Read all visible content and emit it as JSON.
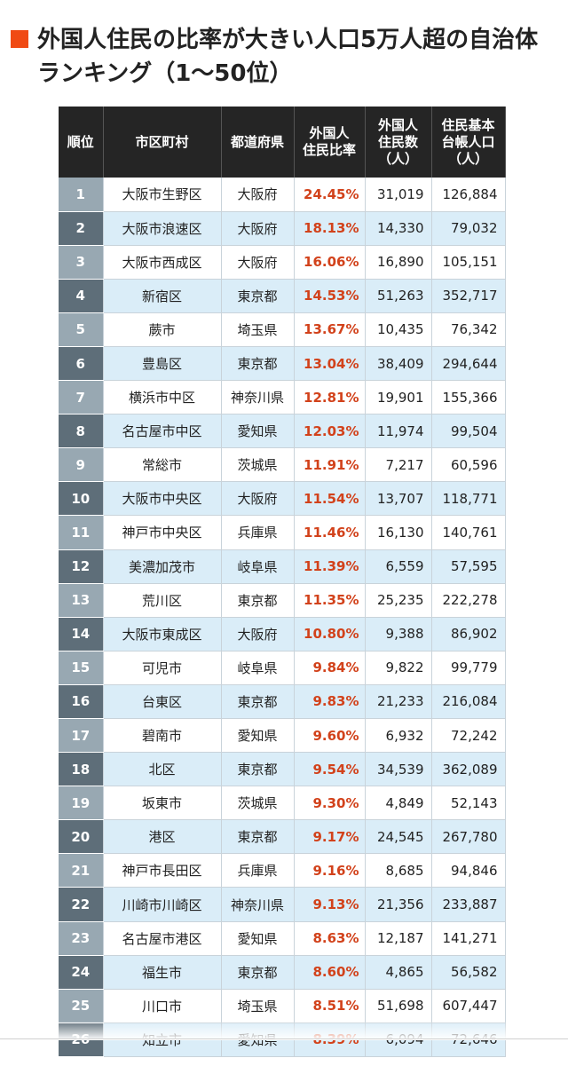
{
  "title": "外国人住民の比率が大きい人口5万人超の自治体ランキング（1〜50位）",
  "colors": {
    "accent": "#f04a14",
    "header_bg": "#252525",
    "ratio_text": "#d2421b",
    "row_stripe": "#daedf8"
  },
  "table": {
    "headers": [
      "順位",
      "市区町村",
      "都道府県",
      "外国人\n住民比率",
      "外国人\n住民数\n（人）",
      "住民基本\n台帳人口\n（人）"
    ],
    "rows": [
      {
        "rank": "1",
        "city": "大阪市生野区",
        "pref": "大阪府",
        "ratio": "24.45%",
        "foreign": "31,019",
        "total": "126,884"
      },
      {
        "rank": "2",
        "city": "大阪市浪速区",
        "pref": "大阪府",
        "ratio": "18.13%",
        "foreign": "14,330",
        "total": "79,032"
      },
      {
        "rank": "3",
        "city": "大阪市西成区",
        "pref": "大阪府",
        "ratio": "16.06%",
        "foreign": "16,890",
        "total": "105,151"
      },
      {
        "rank": "4",
        "city": "新宿区",
        "pref": "東京都",
        "ratio": "14.53%",
        "foreign": "51,263",
        "total": "352,717"
      },
      {
        "rank": "5",
        "city": "蕨市",
        "pref": "埼玉県",
        "ratio": "13.67%",
        "foreign": "10,435",
        "total": "76,342"
      },
      {
        "rank": "6",
        "city": "豊島区",
        "pref": "東京都",
        "ratio": "13.04%",
        "foreign": "38,409",
        "total": "294,644"
      },
      {
        "rank": "7",
        "city": "横浜市中区",
        "pref": "神奈川県",
        "ratio": "12.81%",
        "foreign": "19,901",
        "total": "155,366"
      },
      {
        "rank": "8",
        "city": "名古屋市中区",
        "pref": "愛知県",
        "ratio": "12.03%",
        "foreign": "11,974",
        "total": "99,504"
      },
      {
        "rank": "9",
        "city": "常総市",
        "pref": "茨城県",
        "ratio": "11.91%",
        "foreign": "7,217",
        "total": "60,596"
      },
      {
        "rank": "10",
        "city": "大阪市中央区",
        "pref": "大阪府",
        "ratio": "11.54%",
        "foreign": "13,707",
        "total": "118,771"
      },
      {
        "rank": "11",
        "city": "神戸市中央区",
        "pref": "兵庫県",
        "ratio": "11.46%",
        "foreign": "16,130",
        "total": "140,761"
      },
      {
        "rank": "12",
        "city": "美濃加茂市",
        "pref": "岐阜県",
        "ratio": "11.39%",
        "foreign": "6,559",
        "total": "57,595"
      },
      {
        "rank": "13",
        "city": "荒川区",
        "pref": "東京都",
        "ratio": "11.35%",
        "foreign": "25,235",
        "total": "222,278"
      },
      {
        "rank": "14",
        "city": "大阪市東成区",
        "pref": "大阪府",
        "ratio": "10.80%",
        "foreign": "9,388",
        "total": "86,902"
      },
      {
        "rank": "15",
        "city": "可児市",
        "pref": "岐阜県",
        "ratio": "9.84%",
        "foreign": "9,822",
        "total": "99,779"
      },
      {
        "rank": "16",
        "city": "台東区",
        "pref": "東京都",
        "ratio": "9.83%",
        "foreign": "21,233",
        "total": "216,084"
      },
      {
        "rank": "17",
        "city": "碧南市",
        "pref": "愛知県",
        "ratio": "9.60%",
        "foreign": "6,932",
        "total": "72,242"
      },
      {
        "rank": "18",
        "city": "北区",
        "pref": "東京都",
        "ratio": "9.54%",
        "foreign": "34,539",
        "total": "362,089"
      },
      {
        "rank": "19",
        "city": "坂東市",
        "pref": "茨城県",
        "ratio": "9.30%",
        "foreign": "4,849",
        "total": "52,143"
      },
      {
        "rank": "20",
        "city": "港区",
        "pref": "東京都",
        "ratio": "9.17%",
        "foreign": "24,545",
        "total": "267,780"
      },
      {
        "rank": "21",
        "city": "神戸市長田区",
        "pref": "兵庫県",
        "ratio": "9.16%",
        "foreign": "8,685",
        "total": "94,846"
      },
      {
        "rank": "22",
        "city": "川崎市川崎区",
        "pref": "神奈川県",
        "ratio": "9.13%",
        "foreign": "21,356",
        "total": "233,887"
      },
      {
        "rank": "23",
        "city": "名古屋市港区",
        "pref": "愛知県",
        "ratio": "8.63%",
        "foreign": "12,187",
        "total": "141,271"
      },
      {
        "rank": "24",
        "city": "福生市",
        "pref": "東京都",
        "ratio": "8.60%",
        "foreign": "4,865",
        "total": "56,582"
      },
      {
        "rank": "25",
        "city": "川口市",
        "pref": "埼玉県",
        "ratio": "8.51%",
        "foreign": "51,698",
        "total": "607,447"
      },
      {
        "rank": "26",
        "city": "知立市",
        "pref": "愛知県",
        "ratio": "8.39%",
        "foreign": "6,094",
        "total": "72,646"
      }
    ]
  }
}
